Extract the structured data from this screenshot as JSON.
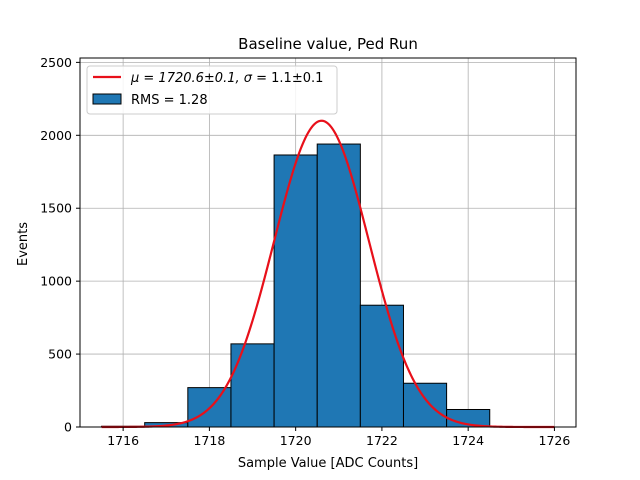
{
  "chart_data": {
    "type": "bar",
    "title": "Baseline value, Ped Run",
    "xlabel": "Sample Value [ADC Counts]",
    "ylabel": "Events",
    "xlim": [
      1715.0,
      1726.5
    ],
    "ylim": [
      0,
      2530
    ],
    "xticks": [
      1716,
      1718,
      1720,
      1722,
      1724,
      1726
    ],
    "yticks": [
      0,
      500,
      1000,
      1500,
      2000,
      2500
    ],
    "grid": true,
    "legend_position": "top-left",
    "bin_width": 1.0,
    "series": [
      {
        "name": "RMS = 1.28",
        "kind": "histogram",
        "color": "#1f77b4",
        "edge_color": "#000000",
        "bin_starts": [
          1715.5,
          1716.5,
          1717.5,
          1718.5,
          1719.5,
          1720.5,
          1721.5,
          1722.5,
          1723.5
        ],
        "values": [
          5,
          30,
          270,
          570,
          1865,
          1940,
          835,
          300,
          120
        ]
      },
      {
        "name_prefix": "μ = 1720.6±0.1, ",
        "name_sigma": "σ",
        "name_suffix": " = 1.1±0.1",
        "kind": "gaussian_fit",
        "color": "#e8101a",
        "amplitude": 2100,
        "mu": 1720.6,
        "sigma": 1.1,
        "x_range": [
          1715.5,
          1726
        ]
      }
    ]
  }
}
